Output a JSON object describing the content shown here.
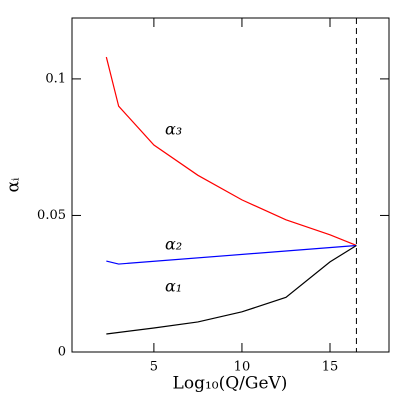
{
  "chart_data": {
    "type": "line",
    "x_label": "Log₁₀(Q/GeV)",
    "y_label": "αᵢ",
    "xlim": [
      0.35,
      18.35
    ],
    "ylim": [
      0,
      0.1223
    ],
    "xticks": [
      5,
      10,
      15
    ],
    "yticks": [
      0,
      0.05,
      0.1
    ],
    "dashed_line_x": 16.5,
    "series": [
      {
        "name": "α₃",
        "color": "#ff0000",
        "x": [
          2.3,
          3,
          5,
          7.5,
          10,
          12.5,
          15,
          16.5
        ],
        "values": [
          0.108,
          0.09,
          0.0758,
          0.0647,
          0.0557,
          0.0484,
          0.0429,
          0.039
        ]
      },
      {
        "name": "α₂",
        "color": "#0000ff",
        "x": [
          2.3,
          3,
          16.5
        ],
        "values": [
          0.0333,
          0.0322,
          0.039
        ]
      },
      {
        "name": "α₁",
        "color": "#000000",
        "x": [
          2.3,
          5,
          7.5,
          10,
          12.5,
          15,
          16.5
        ],
        "values": [
          0.0066,
          0.0088,
          0.011,
          0.0147,
          0.02,
          0.033,
          0.039
        ]
      }
    ]
  }
}
